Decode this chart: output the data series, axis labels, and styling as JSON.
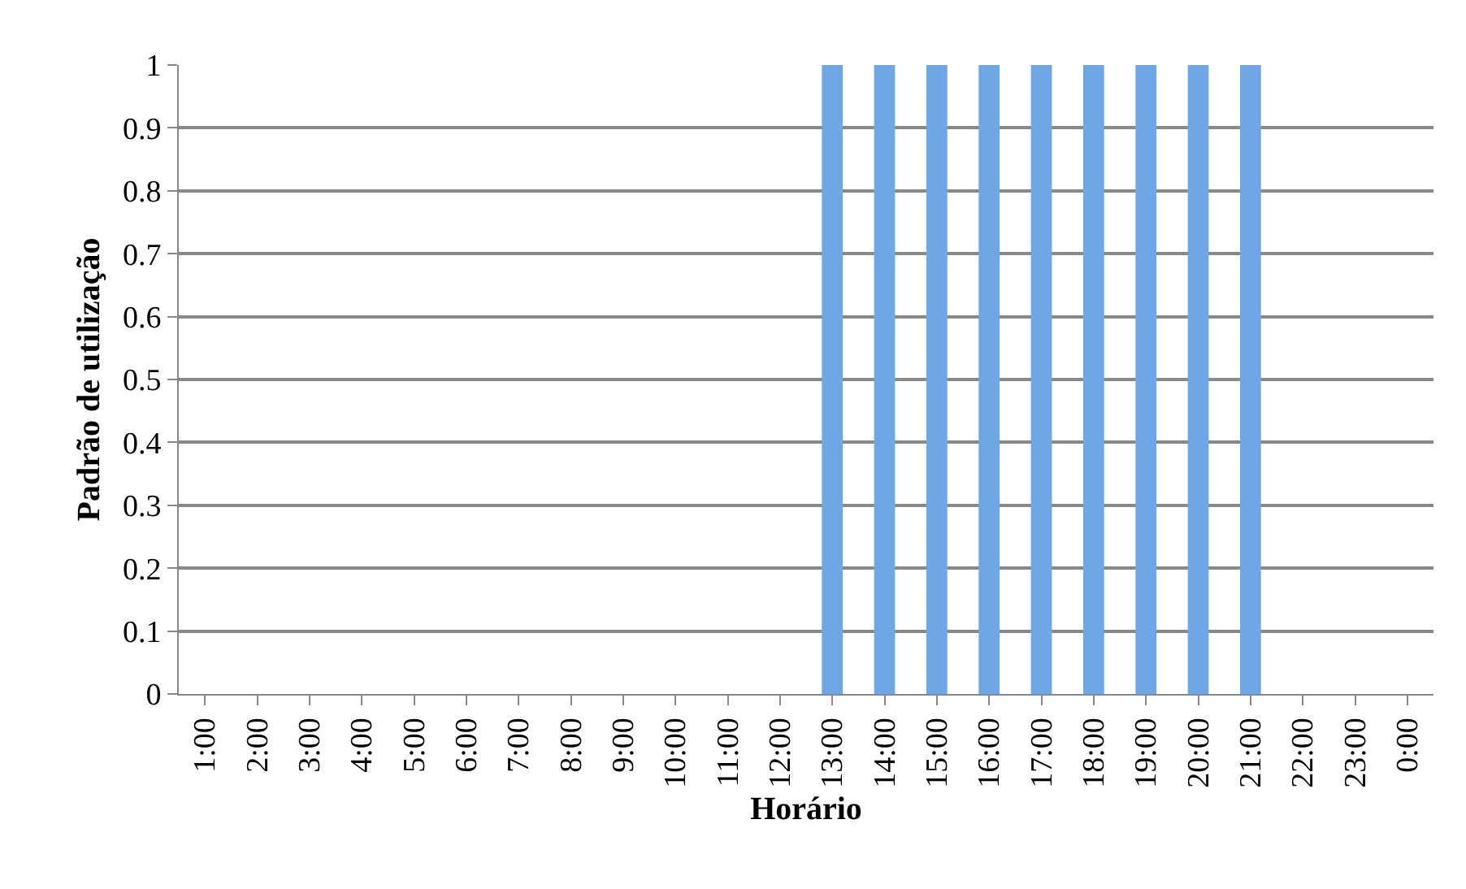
{
  "chart_data": {
    "type": "bar",
    "xlabel": "Horário",
    "ylabel": "Padrão de utilização",
    "categories": [
      "1:00",
      "2:00",
      "3:00",
      "4:00",
      "5:00",
      "6:00",
      "7:00",
      "8:00",
      "9:00",
      "10:00",
      "11:00",
      "12:00",
      "13:00",
      "14:00",
      "15:00",
      "16:00",
      "17:00",
      "18:00",
      "19:00",
      "20:00",
      "21:00",
      "22:00",
      "23:00",
      "0:00"
    ],
    "values": [
      0,
      0,
      0,
      0,
      0,
      0,
      0,
      0,
      0,
      0,
      0,
      0,
      1,
      1,
      1,
      1,
      1,
      1,
      1,
      1,
      1,
      0,
      0,
      0
    ],
    "color": "#6fa6e6",
    "ylim": [
      0,
      1
    ],
    "yticks": [
      0,
      0.1,
      0.2,
      0.3,
      0.4,
      0.5,
      0.6,
      0.7,
      0.8,
      0.9,
      1
    ],
    "grid": "y"
  }
}
